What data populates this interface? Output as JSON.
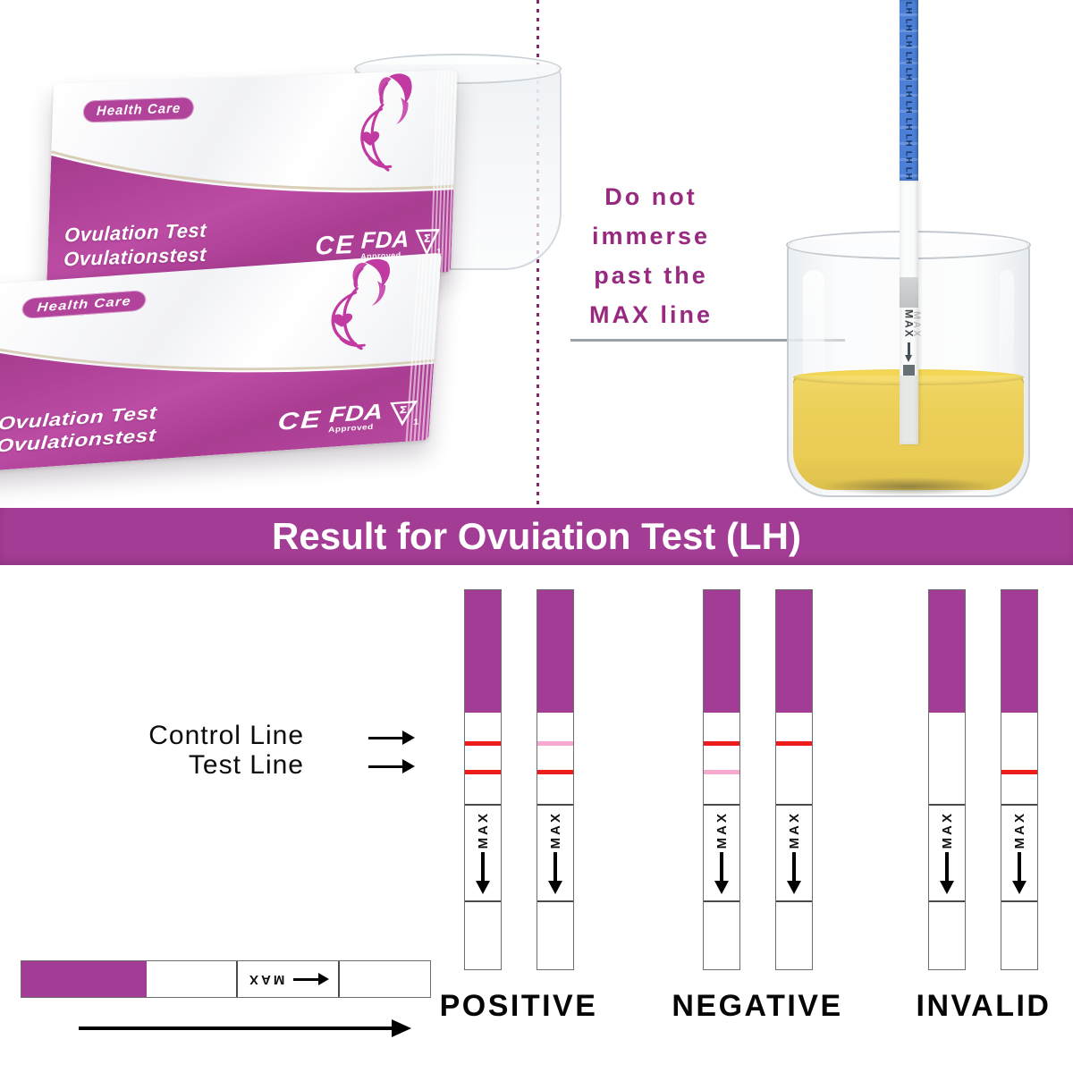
{
  "banner": {
    "title": "Result for Ovuiation Test (LH)"
  },
  "packet": {
    "brand": "Health Care",
    "title_en": "Ovulation Test",
    "title_de": "Ovulationstest",
    "ce": "CE",
    "fda": "FDA",
    "fda_sub": "Approved",
    "sigma": "Σ",
    "sigma_sub": "1"
  },
  "instruction": {
    "lines": [
      "Do not",
      "immerse",
      "past the",
      "MAX line"
    ]
  },
  "dip_strip": {
    "handle_label": "LH",
    "handle_repeat": 11
  },
  "legend": {
    "control": "Control Line",
    "test": "Test Line"
  },
  "max_label": "MAX",
  "results": {
    "group_offsets": [
      0,
      267,
      519
    ],
    "groups": [
      {
        "label": "POSITIVE",
        "strips": [
          {
            "control": "red",
            "test": "red"
          },
          {
            "control": "pink",
            "test": "red"
          }
        ]
      },
      {
        "label": "NEGATIVE",
        "strips": [
          {
            "control": "red",
            "test": "pink"
          },
          {
            "control": "red",
            "test": "none"
          }
        ]
      },
      {
        "label": "INVALID",
        "strips": [
          {
            "control": "none",
            "test": "none"
          },
          {
            "control": "none",
            "test": "red"
          }
        ]
      }
    ],
    "line_colors": {
      "red": "#EE1D1D",
      "pink": "#F9A9CF",
      "none": "transparent"
    }
  },
  "colors": {
    "banner": "#A33C94",
    "strip_purple": "#A23C94",
    "packet_magenta": "#B2439B",
    "instruction_text": "#97297E",
    "divider": "#7E2A6C",
    "urine": "#EAC83E",
    "handle_blue": "#4C80D6"
  }
}
